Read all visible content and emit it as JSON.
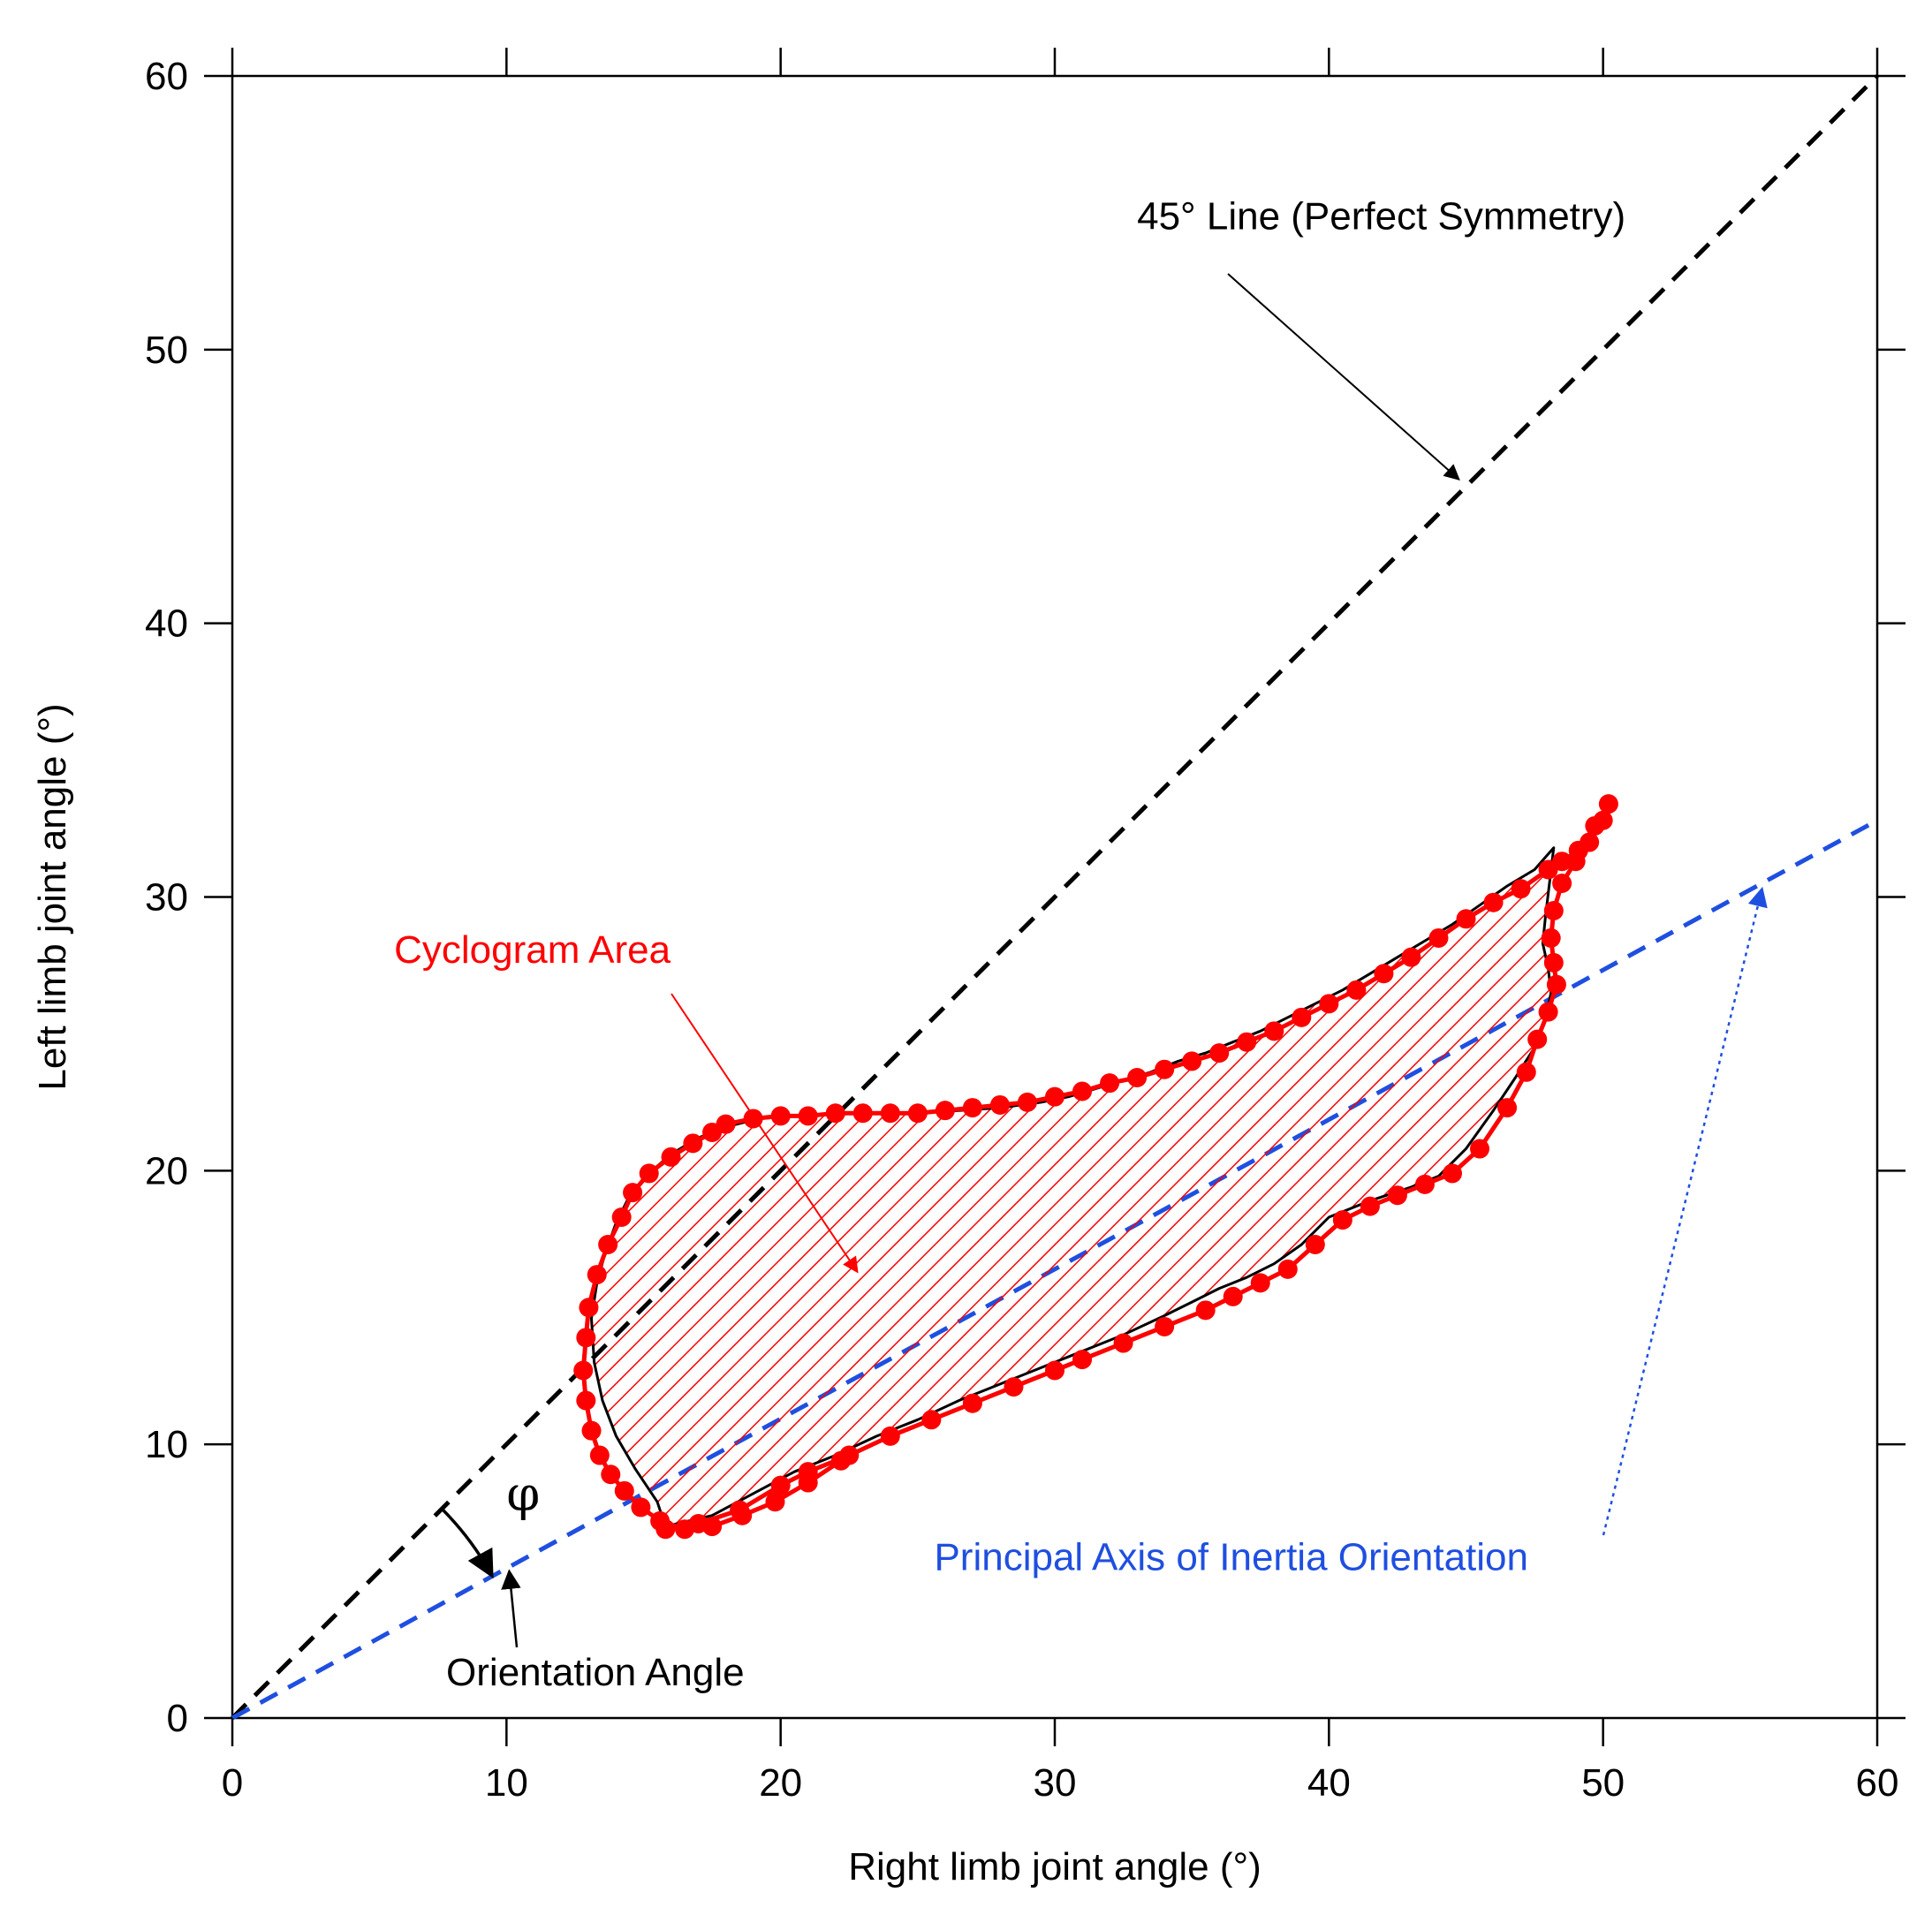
{
  "chart_data": {
    "type": "scatter",
    "title": "",
    "xlabel": "Right limb joint angle (°)",
    "ylabel": "Left limb joint angle (°)",
    "xlim": [
      0,
      60
    ],
    "ylim": [
      0,
      60
    ],
    "xticks": [
      0,
      10,
      20,
      30,
      40,
      50,
      60
    ],
    "yticks": [
      0,
      10,
      20,
      30,
      40,
      50,
      60
    ],
    "xtick_labels": [
      "0",
      "10",
      "20",
      "30",
      "40",
      "50",
      "60"
    ],
    "ytick_labels": [
      "0",
      "10",
      "20",
      "30",
      "40",
      "50",
      "60"
    ],
    "grid": false,
    "series": [
      {
        "name": "Cyclogram",
        "color": "#ff0000",
        "x": [
          15.8,
          17.0,
          18.5,
          20.0,
          21.0,
          22.5,
          24.0,
          25.5,
          27.0,
          28.5,
          30.0,
          31.0,
          32.5,
          34.0,
          35.5,
          36.5,
          37.5,
          38.5,
          39.5,
          40.5,
          41.5,
          42.5,
          43.5,
          44.5,
          45.5,
          46.5,
          47.2,
          47.6,
          48.0,
          48.3,
          48.2,
          48.1,
          48.2,
          48.5,
          49.0,
          49.5,
          50.0,
          50.2,
          49.7,
          49.1,
          48.5,
          48.0,
          47.0,
          46.0,
          45.0,
          44.0,
          43.0,
          42.0,
          41.0,
          40.0,
          39.0,
          38.0,
          37.0,
          36.0,
          35.0,
          34.0,
          33.0,
          32.0,
          31.0,
          30.0,
          29.0,
          28.0,
          27.0,
          26.0,
          25.0,
          24.0,
          23.0,
          22.0,
          21.0,
          20.0,
          19.0,
          18.0,
          17.5,
          16.8,
          16.0,
          15.2,
          14.6,
          14.2,
          13.7,
          13.3,
          13.0,
          12.9,
          12.8,
          12.9,
          13.1,
          13.4,
          13.8,
          14.3,
          14.9,
          15.6,
          16.5,
          17.5,
          18.6,
          19.8,
          21.0,
          22.2
        ],
        "y": [
          6.9,
          7.1,
          7.6,
          8.5,
          9.0,
          9.6,
          10.3,
          10.9,
          11.5,
          12.1,
          12.7,
          13.1,
          13.7,
          14.3,
          14.9,
          15.4,
          15.9,
          16.4,
          17.3,
          18.2,
          18.7,
          19.1,
          19.5,
          19.9,
          20.8,
          22.3,
          23.6,
          24.8,
          25.8,
          26.8,
          27.6,
          28.5,
          29.5,
          30.5,
          31.3,
          32.0,
          32.8,
          33.4,
          32.6,
          31.7,
          31.3,
          31.0,
          30.3,
          29.8,
          29.2,
          28.5,
          27.8,
          27.2,
          26.6,
          26.1,
          25.6,
          25.1,
          24.7,
          24.3,
          24.0,
          23.7,
          23.4,
          23.2,
          22.9,
          22.7,
          22.5,
          22.4,
          22.3,
          22.2,
          22.1,
          22.1,
          22.1,
          22.1,
          22.0,
          22.0,
          21.9,
          21.7,
          21.4,
          21.0,
          20.5,
          19.9,
          19.2,
          18.3,
          17.3,
          16.2,
          15.0,
          13.9,
          12.7,
          11.6,
          10.5,
          9.6,
          8.9,
          8.3,
          7.7,
          7.2,
          6.9,
          7.0,
          7.4,
          7.9,
          8.6,
          9.4
        ]
      }
    ],
    "reference_lines": {
      "symmetry_line": {
        "x": [
          0,
          60
        ],
        "y": [
          0,
          60
        ],
        "color": "#000000",
        "style": "dashed"
      },
      "principal_axis": {
        "x": [
          0,
          60
        ],
        "y": [
          0,
          32.8
        ],
        "color": "#1f4fe0",
        "style": "dashed"
      }
    },
    "cyclogram_outline": {
      "color": "#000000",
      "fill": "hatched",
      "hatch_color": "#ff0000",
      "x": [
        15.8,
        17.5,
        19.0,
        20.5,
        22.0,
        23.5,
        25.0,
        26.5,
        28.0,
        29.5,
        31.0,
        32.5,
        34.0,
        35.0,
        36.0,
        37.0,
        38.0,
        39.0,
        40.0,
        41.5,
        43.0,
        44.0,
        45.0,
        46.0,
        46.8,
        47.5,
        47.9,
        48.1,
        48.0,
        47.8,
        47.9,
        48.2,
        47.5,
        46.5,
        45.5,
        44.5,
        43.5,
        42.5,
        41.5,
        40.5,
        39.5,
        38.5,
        37.5,
        36.5,
        35.5,
        34.5,
        33.5,
        32.5,
        31.5,
        30.5,
        29.5,
        28.0,
        26.5,
        25.0,
        23.5,
        22.0,
        20.5,
        19.2,
        18.0,
        17.0,
        16.0,
        15.2,
        14.5,
        14.0,
        13.6,
        13.3,
        13.1,
        13.2,
        13.5,
        14.0,
        14.7,
        15.5,
        15.8
      ],
      "y": [
        7.0,
        7.4,
        8.2,
        9.0,
        9.6,
        10.3,
        10.9,
        11.6,
        12.2,
        12.8,
        13.4,
        14.0,
        14.7,
        15.2,
        15.7,
        16.1,
        16.6,
        17.3,
        18.3,
        18.9,
        19.4,
        19.8,
        20.8,
        22.2,
        23.4,
        24.5,
        25.5,
        26.5,
        27.4,
        28.3,
        29.3,
        31.8,
        31.0,
        30.4,
        29.7,
        29.0,
        28.4,
        27.8,
        27.2,
        26.6,
        26.1,
        25.6,
        25.1,
        24.7,
        24.3,
        24.0,
        23.6,
        23.3,
        23.0,
        22.7,
        22.5,
        22.3,
        22.2,
        22.1,
        22.1,
        22.1,
        22.0,
        21.9,
        21.6,
        21.2,
        20.6,
        19.9,
        19.1,
        18.1,
        17.0,
        15.9,
        14.6,
        13.0,
        11.6,
        10.3,
        9.1,
        7.9,
        7.0
      ]
    },
    "annotations": [
      {
        "text": "45° Line (Perfect Symmetry)",
        "color": "#000000",
        "x": 33.0,
        "y": 54.4,
        "target": [
          45.0,
          45.0
        ]
      },
      {
        "text": "Cyclogram Area",
        "color": "#ff0000",
        "x": 5.9,
        "y": 27.6,
        "target": [
          22.8,
          16.3
        ]
      },
      {
        "text": "Principal Axis of Inertia Orientation",
        "color": "#1f4fe0",
        "x": 25.6,
        "y": 5.4,
        "target": [
          55.8,
          30.5
        ]
      },
      {
        "text": "Orientation Angle",
        "color": "#000000",
        "x": 7.8,
        "y": 1.2,
        "target": [
          10.1,
          5.5
        ]
      },
      {
        "text": "φ",
        "color": "#000000",
        "x": 10.0,
        "y": 7.6
      }
    ]
  }
}
